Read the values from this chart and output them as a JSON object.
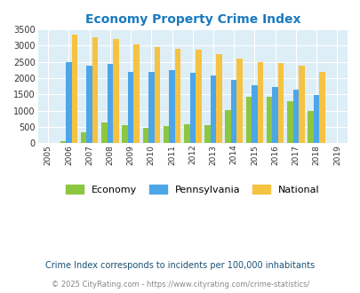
{
  "title": "Economy Property Crime Index",
  "years": [
    2005,
    2006,
    2007,
    2008,
    2009,
    2010,
    2011,
    2012,
    2013,
    2014,
    2015,
    2016,
    2017,
    2018,
    2019
  ],
  "economy": [
    0,
    60,
    330,
    640,
    565,
    480,
    530,
    570,
    555,
    1005,
    1435,
    1435,
    1290,
    990,
    0
  ],
  "pennsylvania": [
    0,
    2480,
    2370,
    2440,
    2200,
    2185,
    2240,
    2160,
    2075,
    1950,
    1790,
    1720,
    1635,
    1490,
    0
  ],
  "national": [
    0,
    3340,
    3255,
    3210,
    3040,
    2955,
    2900,
    2860,
    2730,
    2600,
    2490,
    2465,
    2370,
    2200,
    0
  ],
  "economy_color": "#8dc63f",
  "pennsylvania_color": "#4da6e8",
  "national_color": "#f5c242",
  "bg_color": "#ddeef6",
  "ylim": [
    0,
    3500
  ],
  "yticks": [
    0,
    500,
    1000,
    1500,
    2000,
    2500,
    3000,
    3500
  ],
  "footnote1": "Crime Index corresponds to incidents per 100,000 inhabitants",
  "footnote2": "© 2025 CityRating.com - https://www.cityrating.com/crime-statistics/",
  "title_color": "#1a7abf",
  "footnote1_color": "#1a5276",
  "footnote2_color": "#888888",
  "bar_width": 0.28,
  "grid_color": "#ffffff"
}
